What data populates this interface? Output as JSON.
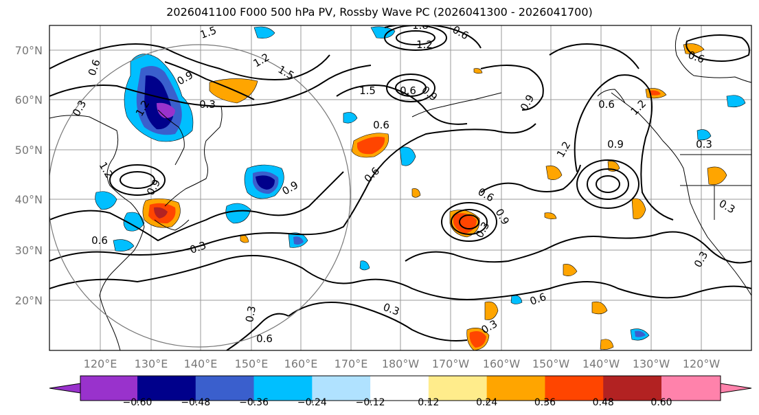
{
  "title": "2026041100 F000 500 hPa PV, Rossby Wave PC (2026041300 - 2026041700)",
  "map": {
    "lat_labels": [
      "70°N",
      "60°N",
      "50°N",
      "40°N",
      "30°N",
      "20°N"
    ],
    "lon_labels": [
      "120°E",
      "130°E",
      "140°E",
      "150°E",
      "160°E",
      "170°E",
      "180°W",
      "170°W",
      "160°W",
      "150°W",
      "140°W",
      "130°W",
      "120°W"
    ],
    "contour_labels": [
      "0.6",
      "1.2",
      "0.9",
      "1.5",
      "1.2",
      "0.3",
      "1.5",
      "1.8",
      "1.2",
      "0.6",
      "1.5",
      "0.6",
      "0.9",
      "0.6",
      "0.6",
      "0.9",
      "0.3",
      "0.6",
      "0.9",
      "0.3",
      "0.9",
      "1.2",
      "0.6",
      "1.2",
      "0.9",
      "0.6",
      "0.3",
      "0.3",
      "0.3",
      "0.3",
      "0.6",
      "0.3",
      "0.6",
      "0.3",
      "1.2",
      "0.9",
      "0.6",
      "0.3"
    ]
  },
  "colorbar": {
    "colors": [
      "#9932cc",
      "#00008b",
      "#3a5fcd",
      "#00bfff",
      "#b0e2ff",
      "#ffffff",
      "#ffec8b",
      "#ffa500",
      "#ff4500",
      "#b22222",
      "#ff82ab"
    ],
    "tick_labels": [
      "−0.60",
      "−0.48",
      "−0.36",
      "−0.24",
      "−0.12",
      "0.12",
      "0.24",
      "0.36",
      "0.48",
      "0.60"
    ]
  }
}
